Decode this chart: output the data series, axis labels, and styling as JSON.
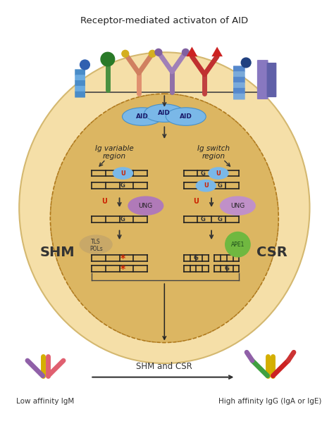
{
  "title": "Receptor-mediated activaton of AID",
  "bg_color": "#ffffff",
  "title_fontsize": 9,
  "outer_ellipse_color": "#f5dfa8",
  "inner_ellipse_color": "#c8952a",
  "shm_text": "SHM",
  "csr_text": "CSR",
  "aid_text": "AID",
  "ung_text": "UNG",
  "tls_text": "TLS\nPOLs",
  "ape1_text": "APE1",
  "ig_var_text": "Ig variable\nregion",
  "ig_sw_text": "Ig switch\nregion",
  "bottom_left_text": "Low affinity IgM",
  "bottom_right_text": "High affinity IgG (IgA or IgE)",
  "shm_csr_text": "SHM and CSR"
}
